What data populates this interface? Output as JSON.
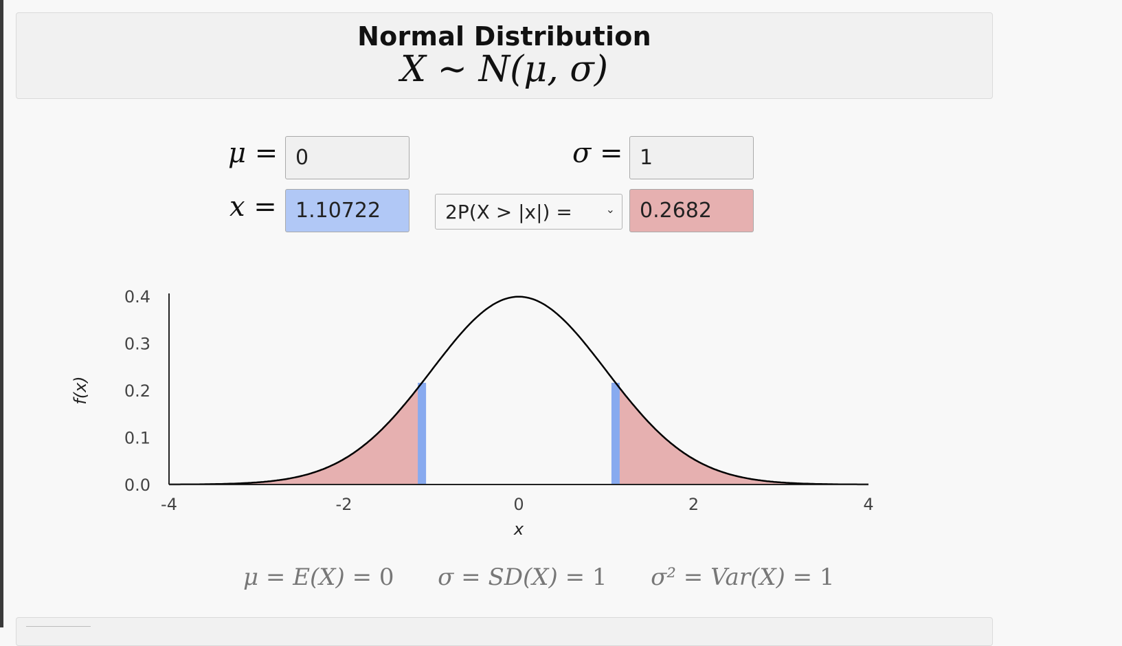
{
  "header": {
    "title": "Normal Distribution",
    "subtitle": {
      "var": "X",
      "sim": "~",
      "dist": "N",
      "args": "(μ, σ)"
    }
  },
  "params": {
    "mu": {
      "symbol": "μ",
      "eq": "=",
      "value": "0"
    },
    "sigma": {
      "symbol": "σ",
      "eq": "=",
      "value": "1"
    },
    "x": {
      "symbol": "x",
      "eq": "=",
      "value": "1.10722"
    },
    "prob_type": {
      "selected": "2P(X > |x|) ="
    },
    "prob_value": "0.2682"
  },
  "chart_data": {
    "type": "area",
    "function": "normal_pdf",
    "mu": 0,
    "sigma": 1,
    "xlim": [
      -4,
      4
    ],
    "ylim": [
      0,
      0.4
    ],
    "x_ticks": [
      "-4",
      "-2",
      "0",
      "2",
      "4"
    ],
    "y_ticks": [
      "0.0",
      "0.1",
      "0.2",
      "0.3",
      "0.4"
    ],
    "xlabel": "x",
    "ylabel": "f(x)",
    "shaded_tails": {
      "cut_low": -1.10722,
      "cut_high": 1.10722
    },
    "colors": {
      "tail": "#e6b0b0",
      "marker": "#88aaef",
      "curve": "#000000"
    }
  },
  "stats": {
    "mean": {
      "lhs": "μ",
      "mid": "E(X)",
      "val": "0"
    },
    "sd": {
      "lhs": "σ",
      "mid": "SD(X)",
      "val": "1"
    },
    "var": {
      "lhs": "σ²",
      "mid": "Var(X)",
      "val": "1"
    }
  }
}
